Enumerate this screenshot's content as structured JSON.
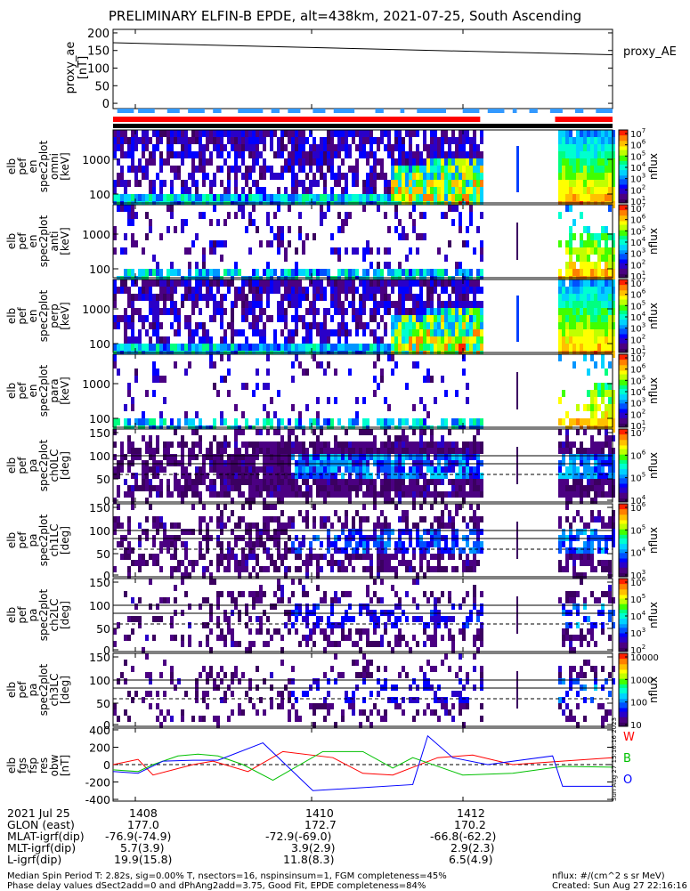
{
  "title": "PRELIMINARY ELFIN-B EPDE, alt=438km, 2021-07-25, South Ascending",
  "chart_data": {
    "type": "heatmap",
    "time_ticks": [
      "1408",
      "1410",
      "1412"
    ],
    "proxy_ae": {
      "ylabel": [
        "proxy_ae",
        "[nT]"
      ],
      "legend": "proxy_AE",
      "yticks": [
        "200",
        "150",
        "100",
        "50",
        "0"
      ],
      "ylim": [
        -15,
        210
      ],
      "x_frac": [
        0,
        1
      ],
      "values": [
        172,
        138
      ]
    },
    "spectrograms": [
      {
        "name": "omni",
        "ylabel": [
          "elb",
          "pef",
          "en",
          "spec2plot",
          "omni",
          "[keV]"
        ],
        "yticks": [
          "1000",
          "100"
        ],
        "cbar_ticks": [
          "10^7",
          "10^6",
          "10^5",
          "10^4",
          "10^3",
          "10^2",
          "10^1"
        ],
        "cbar_label": "nflux",
        "density": 0.85,
        "hot_start": 0.55,
        "gap_line": 0.82
      },
      {
        "name": "anti",
        "ylabel": [
          "elb",
          "pef",
          "en",
          "spec2plot",
          "anti",
          "[keV]"
        ],
        "yticks": [
          "1000",
          "100"
        ],
        "cbar_ticks": [
          "10^7",
          "10^6",
          "10^5",
          "10^4",
          "10^3",
          "10^2",
          "10^1"
        ],
        "cbar_label": "nflux",
        "density": 0.25,
        "hot_start": 0.9,
        "gap_line": 0.2
      },
      {
        "name": "perp",
        "ylabel": [
          "elb",
          "pef",
          "en",
          "spec2plot",
          "perp",
          "[keV]"
        ],
        "yticks": [
          "1000",
          "100"
        ],
        "cbar_ticks": [
          "10^7",
          "10^6",
          "10^5",
          "10^4",
          "10^3",
          "10^2",
          "10^1"
        ],
        "cbar_label": "nflux",
        "density": 0.8,
        "hot_start": 0.55,
        "gap_line": 0.82
      },
      {
        "name": "para",
        "ylabel": [
          "elb",
          "pef",
          "en",
          "spec2plot",
          "para",
          "[keV]"
        ],
        "yticks": [
          "1000",
          "100"
        ],
        "cbar_ticks": [
          "10^7",
          "10^6",
          "10^5",
          "10^4",
          "10^3",
          "10^2",
          "10^1"
        ],
        "cbar_label": "nflux",
        "density": 0.15,
        "hot_start": 0.95,
        "gap_line": 0.1
      }
    ],
    "pitch_angle": [
      {
        "name": "ch0LC",
        "ylabel": [
          "elb",
          "pef",
          "pa",
          "spec2plot",
          "ch0LC",
          "[deg]"
        ],
        "yticks": [
          "150",
          "100",
          "50",
          "0"
        ],
        "cbar_ticks": [
          "10^7",
          "10^6",
          "10^5",
          "10^4"
        ],
        "cbar_label": "nflux",
        "density": 0.9
      },
      {
        "name": "ch1LC",
        "ylabel": [
          "elb",
          "pef",
          "pa",
          "spec2plot",
          "ch1LC",
          "[deg]"
        ],
        "yticks": [
          "150",
          "100",
          "50",
          "0"
        ],
        "cbar_ticks": [
          "10^6",
          "10^5",
          "10^4",
          "10^3"
        ],
        "cbar_label": "nflux",
        "density": 0.6
      },
      {
        "name": "ch2LC",
        "ylabel": [
          "elb",
          "pef",
          "pa",
          "spec2plot",
          "ch2LC",
          "[deg]"
        ],
        "yticks": [
          "150",
          "100",
          "50",
          "0"
        ],
        "cbar_ticks": [
          "10^6",
          "10^5",
          "10^4",
          "10^3",
          "10^2"
        ],
        "cbar_label": "nflux",
        "density": 0.35
      },
      {
        "name": "ch3LC",
        "ylabel": [
          "elb",
          "pef",
          "pa",
          "spec2plot",
          "ch3LC",
          "[deg]"
        ],
        "yticks": [
          "150",
          "100",
          "50",
          "0"
        ],
        "cbar_ticks": [
          "10000",
          "1000",
          "100",
          "10"
        ],
        "cbar_label": "nflux",
        "density": 0.3
      }
    ],
    "fgm": {
      "ylabel": [
        "elb",
        "fgs",
        "fsp",
        "res",
        "obw",
        "[nT]"
      ],
      "yticks": [
        "400",
        "200",
        "0",
        "-200",
        "-400"
      ],
      "ylim": [
        -420,
        420
      ],
      "legend": [
        "W",
        "B",
        "O"
      ],
      "series": [
        {
          "name": "W",
          "color": "#ff0000",
          "points": [
            [
              0,
              0
            ],
            [
              0.05,
              60
            ],
            [
              0.08,
              -120
            ],
            [
              0.16,
              0
            ],
            [
              0.2,
              40
            ],
            [
              0.27,
              -80
            ],
            [
              0.34,
              150
            ],
            [
              0.44,
              80
            ],
            [
              0.5,
              -100
            ],
            [
              0.56,
              -120
            ],
            [
              0.65,
              80
            ],
            [
              0.72,
              110
            ],
            [
              0.8,
              0
            ],
            [
              0.9,
              40
            ],
            [
              1,
              80
            ]
          ]
        },
        {
          "name": "B",
          "color": "#00c000",
          "points": [
            [
              0,
              -60
            ],
            [
              0.05,
              -80
            ],
            [
              0.08,
              0
            ],
            [
              0.13,
              100
            ],
            [
              0.17,
              120
            ],
            [
              0.21,
              100
            ],
            [
              0.26,
              0
            ],
            [
              0.32,
              -180
            ],
            [
              0.42,
              150
            ],
            [
              0.5,
              150
            ],
            [
              0.56,
              -40
            ],
            [
              0.6,
              80
            ],
            [
              0.7,
              -120
            ],
            [
              0.8,
              -100
            ],
            [
              0.9,
              -20
            ],
            [
              1,
              -30
            ]
          ]
        },
        {
          "name": "O",
          "color": "#0000ff",
          "points": [
            [
              0,
              -80
            ],
            [
              0.05,
              -100
            ],
            [
              0.1,
              40
            ],
            [
              0.16,
              50
            ],
            [
              0.21,
              50
            ],
            [
              0.3,
              250
            ],
            [
              0.4,
              -300
            ],
            [
              0.6,
              -230
            ],
            [
              0.63,
              330
            ],
            [
              0.68,
              80
            ],
            [
              0.75,
              0
            ],
            [
              0.88,
              100
            ],
            [
              0.9,
              -250
            ],
            [
              1,
              -250
            ]
          ]
        }
      ]
    }
  },
  "indicator_bars": {
    "note": "segment fractions of the time axis",
    "blue_segments": [
      [
        0.01,
        0.05
      ],
      [
        0.06,
        0.1
      ],
      [
        0.13,
        0.16
      ],
      [
        0.18,
        0.22
      ],
      [
        0.24,
        0.26
      ],
      [
        0.3,
        0.36
      ],
      [
        0.38,
        0.4
      ],
      [
        0.42,
        0.45
      ],
      [
        0.48,
        0.51
      ],
      [
        0.53,
        0.58
      ],
      [
        0.63,
        0.65
      ],
      [
        0.69,
        0.7
      ],
      [
        0.73,
        0.8
      ],
      [
        0.84,
        0.88
      ],
      [
        0.9,
        0.94
      ],
      [
        0.96,
        0.97
      ],
      [
        1.0,
        1.02
      ],
      [
        1.05,
        1.08
      ],
      [
        1.11,
        1.13
      ],
      [
        1.16,
        1.2
      ]
    ],
    "red_segments": [
      [
        0,
        0.735
      ],
      [
        0.885,
        1
      ]
    ],
    "black_segments": [
      [
        0,
        1
      ]
    ]
  },
  "bottom_table": {
    "rows": [
      {
        "label": "2021 Jul 25",
        "values": [
          "1408",
          "1410",
          "1412"
        ]
      },
      {
        "label": "GLON (east)",
        "values": [
          "177.0",
          "172.7",
          "170.2"
        ]
      },
      {
        "label": "MLAT-igrf(dip)",
        "values": [
          "-76.9(-74.9)",
          "-72.9(-69.0)",
          "-66.8(-62.2)"
        ]
      },
      {
        "label": "MLT-igrf(dip)",
        "values": [
          "5.7(3.9)",
          "3.9(2.9)",
          "2.9(2.3)"
        ]
      },
      {
        "label": "L-igrf(dip)",
        "values": [
          "19.9(15.8)",
          "11.8(8.3)",
          "6.5(4.9)"
        ]
      }
    ]
  },
  "footer": {
    "line1": "Median Spin Period T: 2.82s, sig=0.00% T, nsectors=16, nspinsinsum=1, FGM completeness=45%",
    "line2": "Phase delay values dSect2add=0 and dPhAng2add=3.75, Good Fit, EPDE completeness=84%",
    "right1": "nflux: #/(cm^2 s sr MeV)",
    "right2": "Created: Sun Aug 27 22:16:16 2023",
    "side_stamp": "Sun Aug 27 15:16:16 2023"
  }
}
